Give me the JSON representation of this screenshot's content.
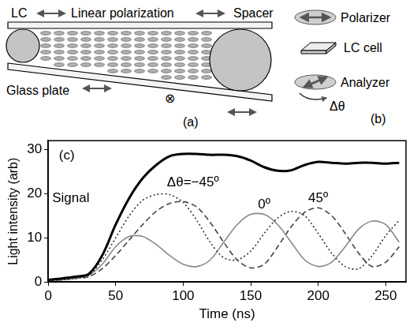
{
  "diagram_a": {
    "label": "(a)",
    "lc": "LC",
    "polarization": "Linear polarization",
    "spacer": "Spacer",
    "glass_plate": "Glass plate",
    "cross_symbol": "⊗"
  },
  "diagram_b": {
    "label": "(b)",
    "polarizer": "Polarizer",
    "lc_cell": "LC cell",
    "analyzer": "Analyzer",
    "angle": "Δθ"
  },
  "chart_data": {
    "type": "line",
    "panel_label": "(c)",
    "xlabel": "Time (ns)",
    "ylabel": "Light intensity (arb)",
    "xlim": [
      0,
      265
    ],
    "ylim": [
      0,
      32
    ],
    "xticks": [
      0,
      50,
      100,
      150,
      200,
      250
    ],
    "yticks": [
      0,
      10,
      20,
      30
    ],
    "grid": false,
    "x": [
      0,
      10,
      20,
      30,
      40,
      50,
      60,
      70,
      80,
      90,
      100,
      110,
      120,
      130,
      140,
      150,
      160,
      170,
      180,
      190,
      200,
      210,
      220,
      230,
      240,
      250,
      260
    ],
    "series": [
      {
        "name": "Signal",
        "color": "#000000",
        "line_style": "solid",
        "values": [
          0.5,
          0.8,
          1.2,
          1.8,
          6,
          13,
          19,
          23.5,
          26.5,
          28.5,
          29,
          29,
          28.8,
          28.8,
          28.5,
          27.5,
          26,
          25.2,
          25.3,
          26.5,
          27.2,
          27,
          26.8,
          27,
          27,
          26.8,
          27
        ]
      },
      {
        "name": "Δθ=−45º",
        "color": "#333333",
        "line_style": "dotted",
        "values": [
          0.3,
          0.5,
          0.8,
          1.5,
          5,
          10,
          15,
          18.5,
          19.8,
          19.8,
          18,
          14,
          9,
          5.5,
          5,
          7,
          11,
          14.5,
          16,
          15,
          11,
          6.5,
          3.5,
          3,
          6,
          10.5,
          14
        ]
      },
      {
        "name": "0º",
        "color": "#888888",
        "line_style": "solid",
        "values": [
          0.3,
          0.5,
          0.8,
          1.5,
          4,
          8,
          10.3,
          10.3,
          8.5,
          6,
          4,
          3.5,
          5,
          9,
          13,
          15.3,
          15.3,
          13,
          9,
          5,
          3.5,
          4.5,
          8,
          12,
          13.8,
          13,
          9
        ]
      },
      {
        "name": "45º",
        "color": "#444444",
        "line_style": "dashed",
        "values": [
          0.3,
          0.5,
          0.8,
          1.2,
          3,
          6,
          9.5,
          13,
          16,
          17.8,
          18.2,
          17,
          13.5,
          9,
          5,
          3.2,
          4,
          8,
          12.5,
          15.8,
          16.8,
          15,
          11,
          6.5,
          3.5,
          4.5,
          8
        ]
      }
    ]
  }
}
